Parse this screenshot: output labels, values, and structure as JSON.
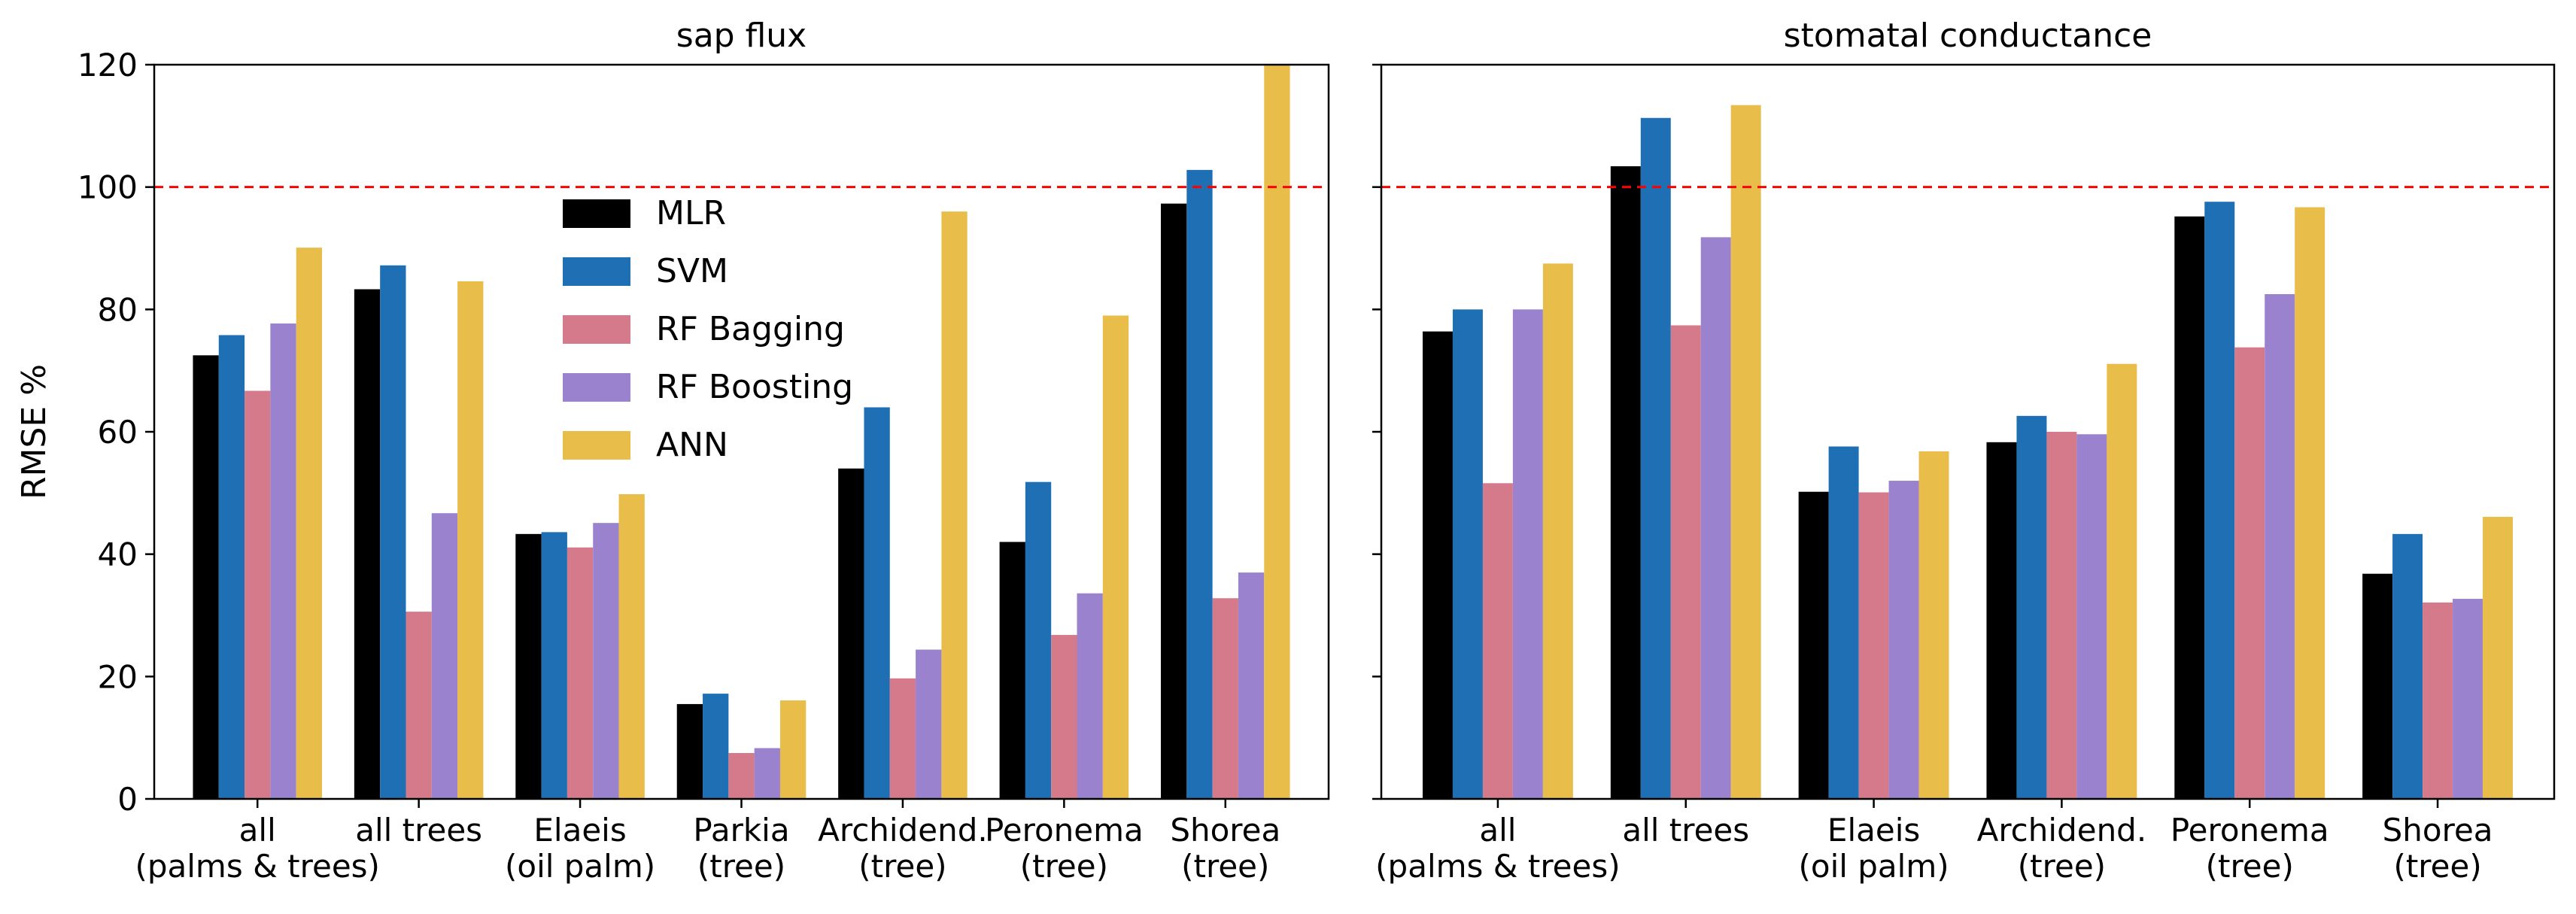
{
  "figure": {
    "ylabel": "RMSE %",
    "reference_line": {
      "value": 100,
      "color": "#ff0000",
      "style": "dashed"
    },
    "legend": {
      "placement": "upper-center of left panel",
      "entries": [
        {
          "name": "MLR",
          "color": "#000000"
        },
        {
          "name": "SVM",
          "color": "#1f6fb4"
        },
        {
          "name": "RF Bagging",
          "color": "#d47a8a"
        },
        {
          "name": "RF Boosting",
          "color": "#9b82cf"
        },
        {
          "name": "ANN",
          "color": "#e8bd4a"
        }
      ]
    },
    "yticks": [
      0,
      20,
      40,
      60,
      80,
      100,
      120
    ]
  },
  "chart_data": [
    {
      "type": "bar",
      "title": "sap flux",
      "xlabel": "",
      "ylabel": "RMSE %",
      "ylim": [
        0,
        120
      ],
      "categories": [
        [
          "all",
          "(palms & trees)"
        ],
        [
          "all trees"
        ],
        [
          "Elaeis",
          "(oil palm)"
        ],
        [
          "Parkia",
          "(tree)"
        ],
        [
          "Archidend.",
          "(tree)"
        ],
        [
          "Peronema",
          "(tree)"
        ],
        [
          "Shorea",
          "(tree)"
        ]
      ],
      "series": [
        {
          "name": "MLR",
          "values": [
            72.5,
            83.3,
            43.3,
            15.5,
            54.0,
            42.0,
            97.3
          ]
        },
        {
          "name": "SVM",
          "values": [
            75.8,
            87.2,
            43.6,
            17.2,
            64.0,
            51.8,
            102.8
          ]
        },
        {
          "name": "RF Bagging",
          "values": [
            66.7,
            30.6,
            41.1,
            7.5,
            19.7,
            26.8,
            32.8
          ]
        },
        {
          "name": "RF Boosting",
          "values": [
            77.7,
            46.7,
            45.1,
            8.3,
            24.4,
            33.6,
            37.0
          ]
        },
        {
          "name": "ANN",
          "values": [
            90.1,
            84.6,
            49.8,
            16.1,
            96.0,
            79.0,
            120.0
          ]
        }
      ]
    },
    {
      "type": "bar",
      "title": "stomatal conductance",
      "xlabel": "",
      "ylabel": "",
      "ylim": [
        0,
        120
      ],
      "categories": [
        [
          "all",
          "(palms & trees)"
        ],
        [
          "all trees"
        ],
        [
          "Elaeis",
          "(oil palm)"
        ],
        [
          "Archidend.",
          "(tree)"
        ],
        [
          "Peronema",
          "(tree)"
        ],
        [
          "Shorea",
          "(tree)"
        ]
      ],
      "series": [
        {
          "name": "MLR",
          "values": [
            76.4,
            103.4,
            50.2,
            58.3,
            95.2,
            36.8
          ]
        },
        {
          "name": "SVM",
          "values": [
            80.0,
            111.3,
            57.6,
            62.6,
            97.6,
            43.3
          ]
        },
        {
          "name": "RF Bagging",
          "values": [
            51.6,
            77.4,
            50.1,
            60.0,
            73.8,
            32.1
          ]
        },
        {
          "name": "RF Boosting",
          "values": [
            80.0,
            91.8,
            52.0,
            59.6,
            82.5,
            32.7
          ]
        },
        {
          "name": "ANN",
          "values": [
            87.5,
            113.4,
            56.8,
            71.1,
            96.7,
            46.1
          ]
        }
      ]
    }
  ]
}
